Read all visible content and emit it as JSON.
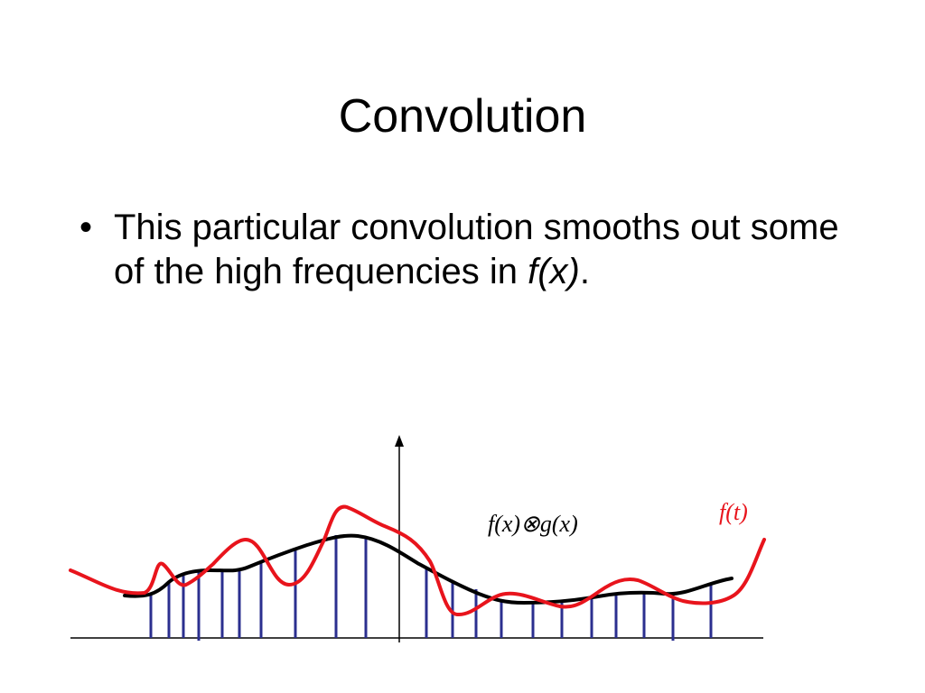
{
  "slide": {
    "title": "Convolution",
    "bullet": {
      "lead": "This particular convolution smooths out some of the high frequencies in ",
      "emph": "f(x)",
      "tail": "."
    }
  },
  "figure": {
    "label_conv": "f(x)⊗g(x)",
    "label_f": "f(t)",
    "colors": {
      "f_curve": "#e8141c",
      "smooth_curve": "#000000",
      "samples": "#2b2f8f",
      "axes": "#000000"
    }
  }
}
